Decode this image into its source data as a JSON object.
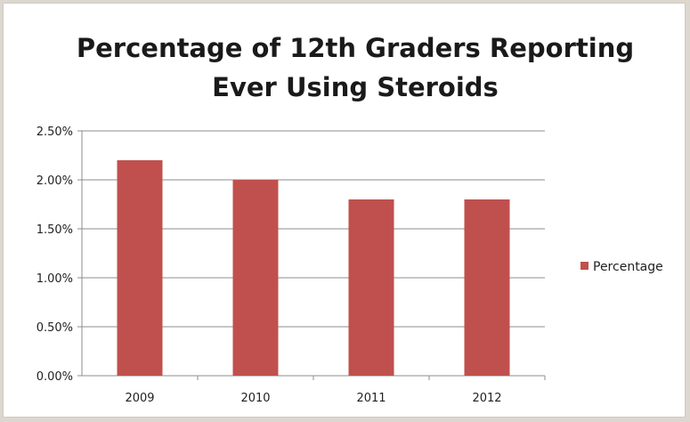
{
  "chart_data": {
    "type": "bar",
    "title": "Percentage of 12th Graders Reporting\nEver Using Steroids",
    "categories": [
      "2009",
      "2010",
      "2011",
      "2012"
    ],
    "series": [
      {
        "name": "Percentage",
        "values": [
          2.2,
          2.0,
          1.8,
          1.8
        ],
        "color": "#c0504d"
      }
    ],
    "xlabel": "",
    "ylabel": "",
    "ylim": [
      0,
      2.5
    ],
    "yticks": [
      "0.00%",
      "0.50%",
      "1.00%",
      "1.50%",
      "2.00%",
      "2.50%"
    ],
    "grid": true,
    "legend": "right"
  }
}
